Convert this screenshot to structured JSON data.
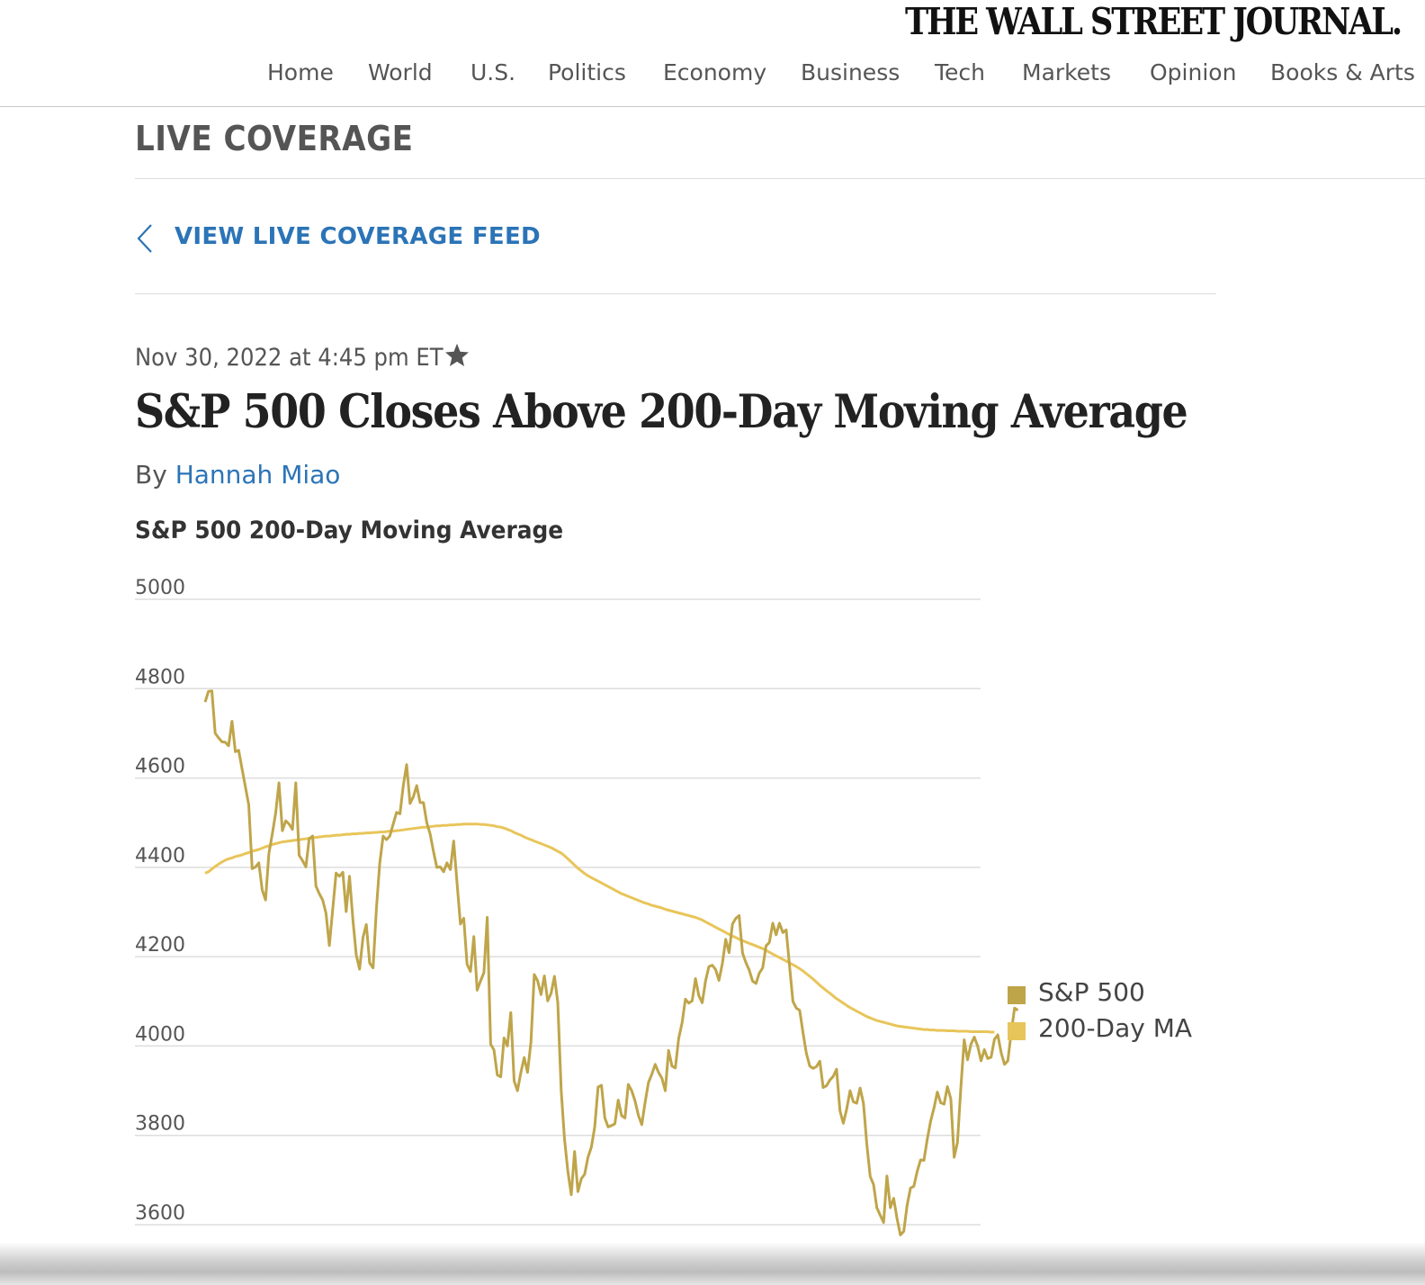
{
  "masthead": "THE WALL STREET JOURNAL.",
  "nav": {
    "items": [
      {
        "label": "Home"
      },
      {
        "label": "World"
      },
      {
        "label": "U.S."
      },
      {
        "label": "Politics"
      },
      {
        "label": "Economy"
      },
      {
        "label": "Business"
      },
      {
        "label": "Tech"
      },
      {
        "label": "Markets"
      },
      {
        "label": "Opinion"
      },
      {
        "label": "Books & Arts"
      }
    ]
  },
  "section_label": "LIVE COVERAGE",
  "back_link": {
    "label": "VIEW LIVE COVERAGE FEED",
    "icon": "chevron-left-icon"
  },
  "article": {
    "timestamp": "Nov 30, 2022 at 4:45 pm ET",
    "bookmark_icon": "star-icon",
    "headline": "S&P 500 Closes Above 200-Day Moving Average",
    "byline_prefix": "By",
    "author": "Hannah Miao"
  },
  "colors": {
    "link_blue": "#2b74b7",
    "sp500": "#bfa54a",
    "ma200": "#e8c55a",
    "gridline": "#dddddd"
  },
  "chart_data": {
    "type": "line",
    "title": "S&P 500 200-Day Moving Average",
    "y_ticks": [
      "5000",
      "4800",
      "4600",
      "4400",
      "4200",
      "4000",
      "3800",
      "3600"
    ],
    "ylim": [
      3600,
      5000
    ],
    "x_count": 230,
    "grid": true,
    "legend_position": "right",
    "series": [
      {
        "name": "S&P 500",
        "color": "#bfa54a",
        "values": [
          4770,
          4794,
          4795,
          4700,
          4690,
          4681,
          4680,
          4672,
          4727,
          4659,
          4662,
          4620,
          4580,
          4540,
          4397,
          4401,
          4410,
          4349,
          4327,
          4431,
          4475,
          4521,
          4589,
          4482,
          4504,
          4497,
          4485,
          4589,
          4427,
          4415,
          4401,
          4464,
          4470,
          4358,
          4341,
          4327,
          4297,
          4225,
          4307,
          4387,
          4380,
          4389,
          4301,
          4380,
          4282,
          4204,
          4172,
          4243,
          4272,
          4186,
          4175,
          4307,
          4409,
          4470,
          4462,
          4470,
          4497,
          4523,
          4520,
          4583,
          4630,
          4543,
          4558,
          4583,
          4545,
          4545,
          4500,
          4474,
          4435,
          4400,
          4401,
          4390,
          4410,
          4395,
          4459,
          4366,
          4273,
          4286,
          4183,
          4167,
          4245,
          4125,
          4146,
          4164,
          4288,
          4004,
          3991,
          3935,
          3931,
          4018,
          4000,
          4075,
          3922,
          3900,
          3941,
          3974,
          3941,
          4009,
          4160,
          4146,
          4115,
          4157,
          4101,
          4118,
          4156,
          4098,
          3901,
          3792,
          3720,
          3667,
          3764,
          3674,
          3703,
          3713,
          3751,
          3774,
          3819,
          3908,
          3912,
          3839,
          3819,
          3822,
          3826,
          3879,
          3844,
          3839,
          3914,
          3900,
          3877,
          3845,
          3824,
          3874,
          3918,
          3937,
          3959,
          3941,
          3928,
          3900,
          3990,
          3955,
          3951,
          4017,
          4052,
          4105,
          4096,
          4101,
          4151,
          4113,
          4097,
          4146,
          4178,
          4181,
          4171,
          4147,
          4185,
          4239,
          4209,
          4273,
          4286,
          4292,
          4208,
          4187,
          4170,
          4145,
          4140,
          4163,
          4175,
          4224,
          4232,
          4275,
          4249,
          4275,
          4254,
          4260,
          4178,
          4100,
          4085,
          4080,
          4030,
          3984,
          3955,
          3950,
          3954,
          3966,
          3907,
          3911,
          3924,
          3932,
          3948,
          3855,
          3827,
          3858,
          3900,
          3875,
          3872,
          3906,
          3872,
          3781,
          3708,
          3690,
          3638,
          3621,
          3605,
          3709,
          3638,
          3659,
          3614,
          3577,
          3585,
          3643,
          3682,
          3686,
          3719,
          3745,
          3744,
          3791,
          3832,
          3861,
          3897,
          3873,
          3870,
          3909,
          3882,
          3751,
          3784,
          3908,
          4014,
          3969,
          4004,
          4020,
          4000,
          3967,
          3992,
          3972,
          3975,
          4015,
          4025,
          3985,
          3959,
          3967,
          4031,
          4085,
          4080
        ]
      },
      {
        "name": "200-Day MA",
        "color": "#e8c55a",
        "values": [
          4387,
          4390,
          4396,
          4402,
          4407,
          4412,
          4416,
          4419,
          4421,
          4424,
          4426,
          4428,
          4431,
          4433,
          4436,
          4438,
          4440,
          4443,
          4446,
          4448,
          4451,
          4453,
          4455,
          4457,
          4458,
          4459,
          4460,
          4461,
          4462,
          4463,
          4464,
          4465,
          4466,
          4467,
          4468,
          4469,
          4470,
          4470,
          4471,
          4472,
          4472,
          4473,
          4474,
          4474,
          4475,
          4475,
          4476,
          4476,
          4477,
          4477,
          4478,
          4478,
          4479,
          4479,
          4480,
          4481,
          4481,
          4482,
          4483,
          4484,
          4485,
          4486,
          4487,
          4488,
          4489,
          4490,
          4490,
          4491,
          4492,
          4493,
          4493,
          4494,
          4494,
          4495,
          4495,
          4496,
          4496,
          4497,
          4497,
          4497,
          4497,
          4497,
          4496,
          4496,
          4495,
          4494,
          4493,
          4491,
          4490,
          4488,
          4485,
          4482,
          4478,
          4475,
          4472,
          4468,
          4465,
          4462,
          4459,
          4456,
          4453,
          4450,
          4447,
          4444,
          4440,
          4436,
          4432,
          4426,
          4419,
          4412,
          4405,
          4398,
          4392,
          4386,
          4381,
          4377,
          4373,
          4369,
          4365,
          4361,
          4357,
          4353,
          4349,
          4345,
          4341,
          4338,
          4335,
          4332,
          4329,
          4326,
          4323,
          4320,
          4318,
          4315,
          4313,
          4311,
          4309,
          4306,
          4304,
          4302,
          4300,
          4298,
          4296,
          4294,
          4292,
          4290,
          4288,
          4285,
          4282,
          4278,
          4274,
          4270,
          4266,
          4262,
          4258,
          4254,
          4250,
          4246,
          4243,
          4239,
          4236,
          4233,
          4230,
          4227,
          4224,
          4221,
          4218,
          4214,
          4210,
          4206,
          4202,
          4198,
          4194,
          4190,
          4186,
          4182,
          4178,
          4173,
          4168,
          4162,
          4156,
          4150,
          4143,
          4136,
          4130,
          4124,
          4118,
          4112,
          4106,
          4101,
          4096,
          4091,
          4086,
          4082,
          4078,
          4074,
          4070,
          4066,
          4063,
          4060,
          4057,
          4055,
          4053,
          4051,
          4049,
          4047,
          4045,
          4044,
          4043,
          4042,
          4041,
          4040,
          4039,
          4038,
          4037,
          4037,
          4036,
          4036,
          4035,
          4035,
          4035,
          4034,
          4034,
          4034,
          4033,
          4033,
          4033,
          4033,
          4032,
          4032,
          4032,
          4032,
          4032,
          4032,
          4031,
          4031
        ]
      }
    ]
  }
}
